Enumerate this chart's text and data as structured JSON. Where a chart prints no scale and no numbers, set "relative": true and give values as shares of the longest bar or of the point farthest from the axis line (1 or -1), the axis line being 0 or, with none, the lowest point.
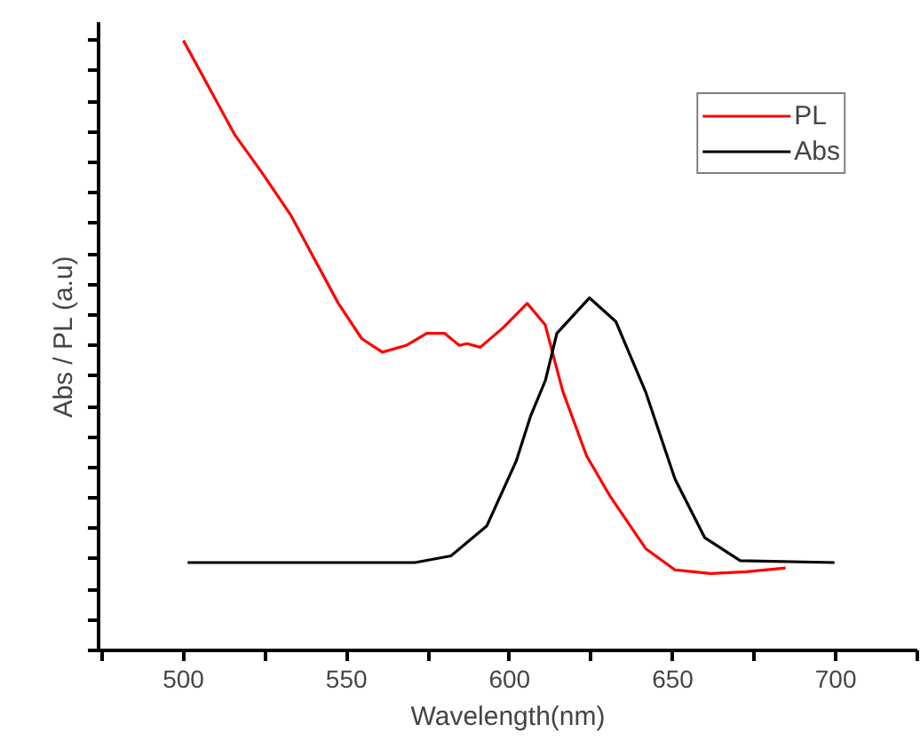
{
  "chart_data": {
    "type": "line",
    "relative": true,
    "xlabel": "Wavelength(nm)",
    "ylabel": "Abs / PL (a.u)",
    "xlim": [
      474,
      725
    ],
    "xticks": [
      {
        "value": 475,
        "label": null
      },
      500,
      {
        "value": 525,
        "label": null
      },
      550,
      {
        "value": 575,
        "label": null
      },
      600,
      {
        "value": 625,
        "label": null
      },
      650,
      {
        "value": 675,
        "label": null
      },
      700,
      {
        "value": 725,
        "label": null
      }
    ],
    "legend": "top right",
    "grid": false,
    "marker": "none",
    "line_style": "solid",
    "series": [
      {
        "name": "PL",
        "color": "#ff0000",
        "x": [
          500,
          515.8,
          524,
          533,
          547.5,
          554.7,
          561,
          568.3,
          574.6,
          580,
          584.6,
          587,
          591,
          598,
          605.4,
          610.9,
          616.3,
          623.6,
          630.8,
          641.7,
          650.7,
          661.6,
          672.5,
          684.6
        ],
        "values": [
          1.0,
          0.845,
          0.784,
          0.713,
          0.569,
          0.511,
          0.489,
          0.5,
          0.52,
          0.52,
          0.5,
          0.503,
          0.497,
          0.529,
          0.569,
          0.534,
          0.425,
          0.319,
          0.253,
          0.167,
          0.132,
          0.126,
          0.129,
          0.135
        ]
      },
      {
        "name": "Abs",
        "color": "#000000",
        "x": [
          501.3,
          571,
          582,
          593,
          602,
          606.5,
          611,
          614.5,
          624.5,
          632.6,
          641.7,
          650.7,
          659.8,
          670.7,
          699.6
        ],
        "values": [
          0.144,
          0.144,
          0.155,
          0.204,
          0.31,
          0.385,
          0.443,
          0.52,
          0.578,
          0.539,
          0.424,
          0.281,
          0.185,
          0.147,
          0.144
        ]
      }
    ]
  }
}
